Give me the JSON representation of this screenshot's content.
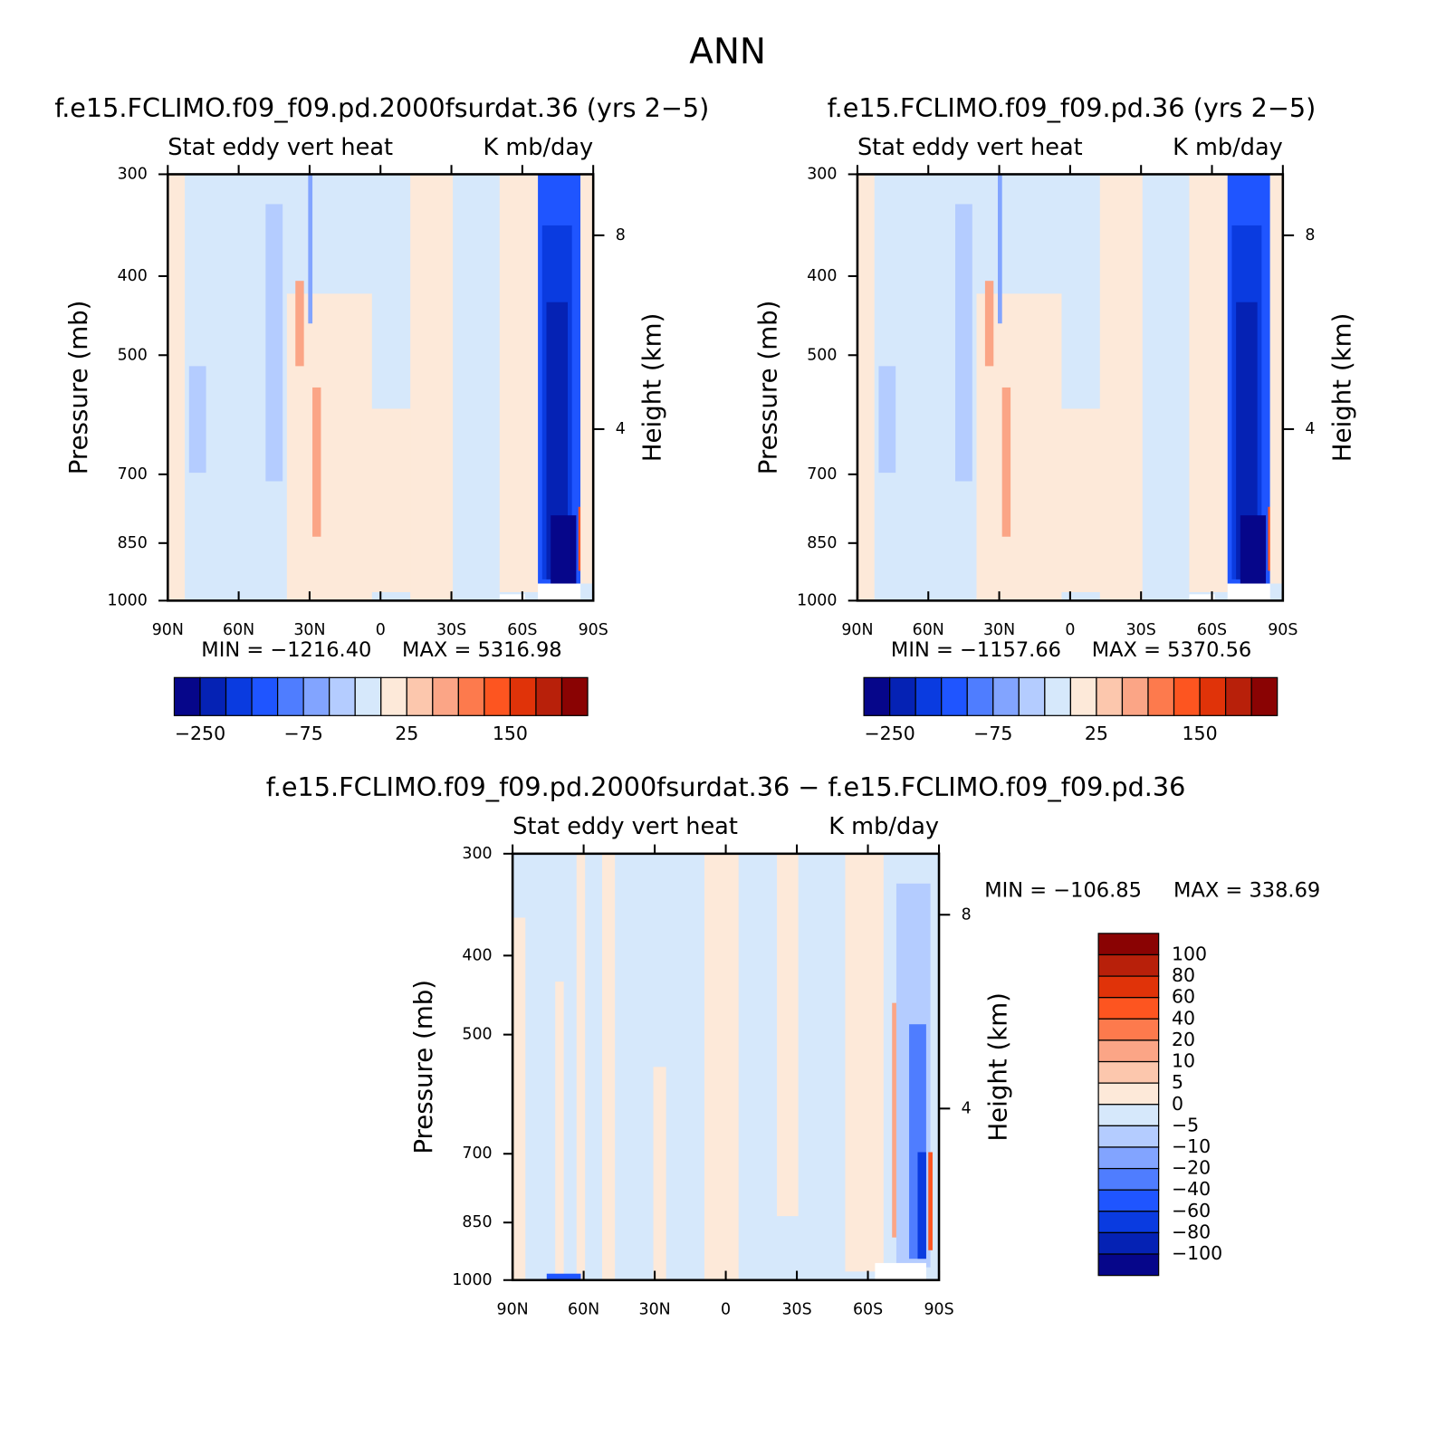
{
  "title": "ANN",
  "chart_data": [
    {
      "type": "contour",
      "title": "f.e15.FCLIMO.f09_f09.pd.2000fsurdat.36 (yrs 2−5)",
      "subtitle_left": "Stat eddy vert heat",
      "subtitle_right": "K mb/day",
      "xlim": [
        90,
        -90
      ],
      "xticks": [
        {
          "value": 90,
          "label": "90N"
        },
        {
          "value": 60,
          "label": "60N"
        },
        {
          "value": 30,
          "label": "30N"
        },
        0,
        {
          "value": -30,
          "label": "30S"
        },
        {
          "value": -60,
          "label": "60S"
        },
        {
          "value": -90,
          "label": "90S"
        }
      ],
      "ylim": [
        1000,
        300
      ],
      "yticks": [
        300,
        400,
        500,
        700,
        850,
        1000
      ],
      "ylog": true,
      "ylabel": "Pressure (mb)",
      "y2lim": [
        0.46,
        9.26
      ],
      "y2ticks": [
        8,
        4
      ],
      "y2label": "Height (km)",
      "min_text": "MIN = −1216.40",
      "max_text": "MAX = 5316.98",
      "colorbar": {
        "orientation": "horizontal",
        "colors": [
          "#06068a",
          "#0522b4",
          "#0a3be0",
          "#1f55ff",
          "#4f7dff",
          "#82a4ff",
          "#b4ccff",
          "#d6e8fb",
          "#fde9d9",
          "#fcc7ad",
          "#fba586",
          "#fd7a4d",
          "#fd5520",
          "#e03309",
          "#b8200a",
          "#8a0303"
        ],
        "ticks": [
          {
            "value": -250,
            "label": "−250"
          },
          {
            "value": -75,
            "label": "−75"
          },
          25,
          150
        ]
      }
    },
    {
      "type": "contour",
      "title": "f.e15.FCLIMO.f09_f09.pd.36 (yrs 2−5)",
      "subtitle_left": "Stat eddy vert heat",
      "subtitle_right": "K mb/day",
      "xlim": [
        90,
        -90
      ],
      "xticks": [
        {
          "value": 90,
          "label": "90N"
        },
        {
          "value": 60,
          "label": "60N"
        },
        {
          "value": 30,
          "label": "30N"
        },
        0,
        {
          "value": -30,
          "label": "30S"
        },
        {
          "value": -60,
          "label": "60S"
        },
        {
          "value": -90,
          "label": "90S"
        }
      ],
      "ylim": [
        1000,
        300
      ],
      "yticks": [
        300,
        400,
        500,
        700,
        850,
        1000
      ],
      "ylog": true,
      "ylabel": "Pressure (mb)",
      "y2lim": [
        0.46,
        9.26
      ],
      "y2ticks": [
        8,
        4
      ],
      "y2label": "Height (km)",
      "min_text": "MIN = −1157.66",
      "max_text": "MAX = 5370.56",
      "colorbar": {
        "orientation": "horizontal",
        "colors": [
          "#06068a",
          "#0522b4",
          "#0a3be0",
          "#1f55ff",
          "#4f7dff",
          "#82a4ff",
          "#b4ccff",
          "#d6e8fb",
          "#fde9d9",
          "#fcc7ad",
          "#fba586",
          "#fd7a4d",
          "#fd5520",
          "#e03309",
          "#b8200a",
          "#8a0303"
        ],
        "ticks": [
          {
            "value": -250,
            "label": "−250"
          },
          {
            "value": -75,
            "label": "−75"
          },
          25,
          150
        ]
      }
    },
    {
      "type": "contour",
      "title": "f.e15.FCLIMO.f09_f09.pd.2000fsurdat.36 − f.e15.FCLIMO.f09_f09.pd.36",
      "subtitle_left": "Stat eddy vert heat",
      "subtitle_right": "K mb/day",
      "xlim": [
        90,
        -90
      ],
      "xticks": [
        {
          "value": 90,
          "label": "90N"
        },
        {
          "value": 60,
          "label": "60N"
        },
        {
          "value": 30,
          "label": "30N"
        },
        0,
        {
          "value": -30,
          "label": "30S"
        },
        {
          "value": -60,
          "label": "60S"
        },
        {
          "value": -90,
          "label": "90S"
        }
      ],
      "ylim": [
        1000,
        300
      ],
      "yticks": [
        300,
        400,
        500,
        700,
        850,
        1000
      ],
      "ylog": true,
      "ylabel": "Pressure (mb)",
      "y2lim": [
        0.46,
        9.26
      ],
      "y2ticks": [
        8,
        4
      ],
      "y2label": "Height (km)",
      "min_text": "MIN = −106.85",
      "max_text": "MAX = 338.69",
      "colorbar": {
        "orientation": "vertical",
        "colors": [
          "#8a0303",
          "#b8200a",
          "#e03309",
          "#fd5520",
          "#fd7a4d",
          "#fba586",
          "#fcc7ad",
          "#fde9d9",
          "#d6e8fb",
          "#b4ccff",
          "#82a4ff",
          "#4f7dff",
          "#1f55ff",
          "#0a3be0",
          "#0522b4",
          "#06068a"
        ],
        "ticks": [
          100,
          80,
          60,
          40,
          20,
          10,
          5,
          0,
          {
            "value": -5,
            "label": "−5"
          },
          {
            "value": -10,
            "label": "−10"
          },
          {
            "value": -20,
            "label": "−20"
          },
          {
            "value": -40,
            "label": "−40"
          },
          {
            "value": -60,
            "label": "−60"
          },
          {
            "value": -80,
            "label": "−80"
          },
          {
            "value": -100,
            "label": "−100"
          }
        ]
      }
    }
  ]
}
